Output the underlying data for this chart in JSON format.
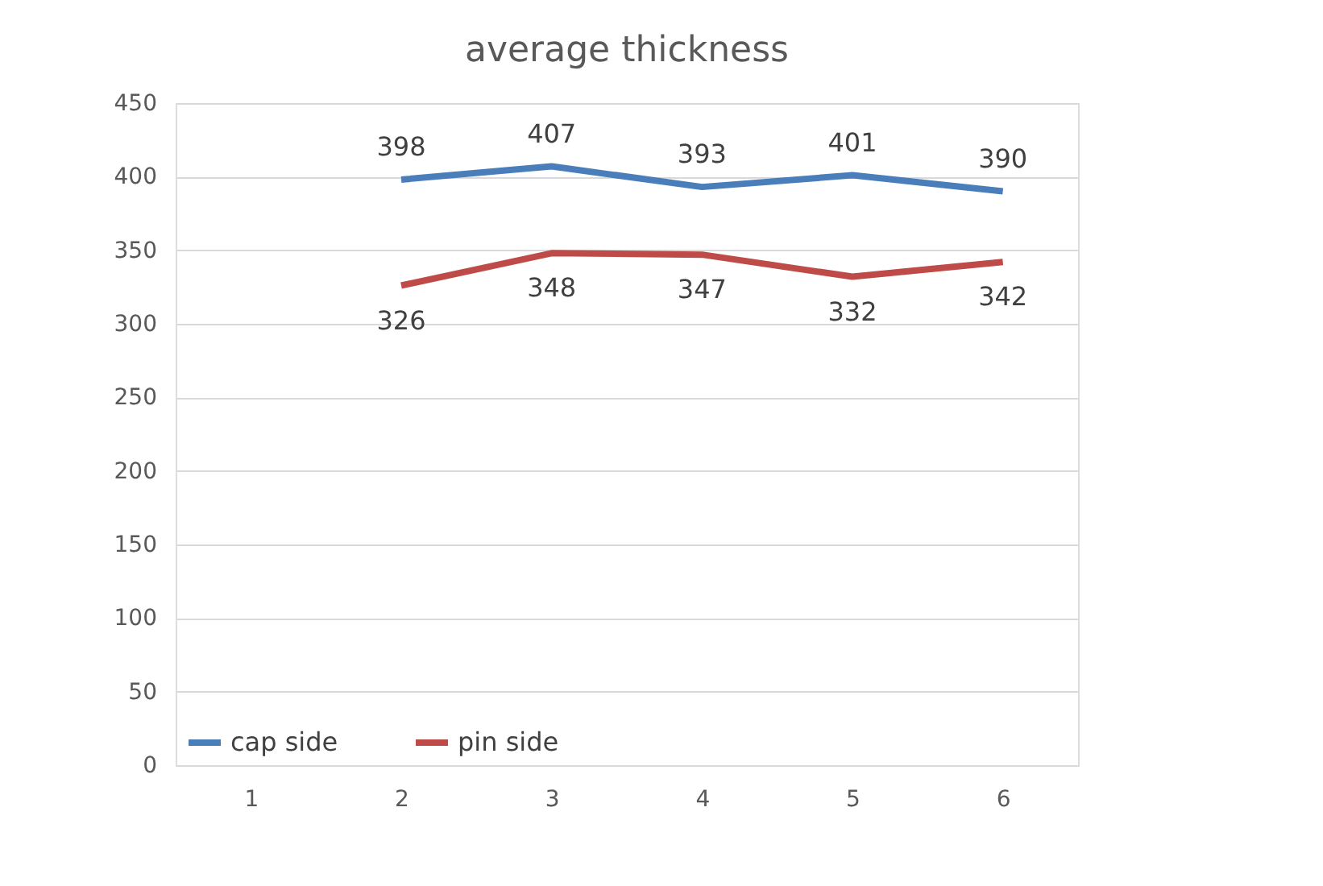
{
  "chart_data": {
    "type": "line",
    "title": "average thickness",
    "categories": [
      "1",
      "2",
      "3",
      "4",
      "5",
      "6"
    ],
    "series": [
      {
        "name": "cap side",
        "color": "#4a7ebb",
        "values": [
          null,
          398,
          407,
          393,
          401,
          390
        ]
      },
      {
        "name": "pin side",
        "color": "#be4b48",
        "values": [
          null,
          326,
          348,
          347,
          332,
          342
        ]
      }
    ],
    "ylim": [
      0,
      450
    ],
    "yticks": [
      0,
      50,
      100,
      150,
      200,
      250,
      300,
      350,
      400,
      450
    ],
    "grid": "y",
    "legend": "bottom left",
    "data_labels": true,
    "marker": "none",
    "line_style": "solid"
  }
}
